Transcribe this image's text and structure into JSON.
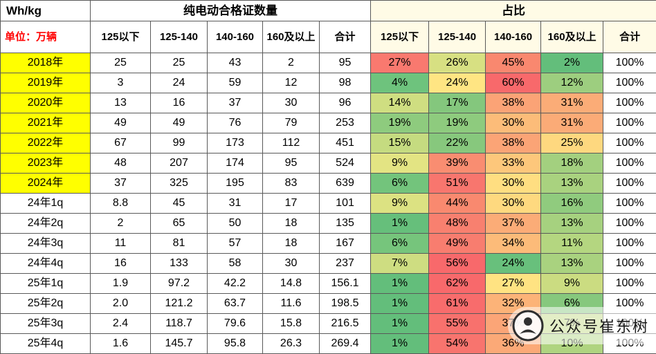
{
  "chart_data": {
    "type": "table",
    "corner": {
      "top": "Wh/kg",
      "sub": "单位：万辆"
    },
    "groups": [
      {
        "label": "纯电动合格证数量",
        "columns": [
          "125以下",
          "125-140",
          "140-160",
          "160及以上",
          "合计"
        ]
      },
      {
        "label": "占比",
        "columns": [
          "125以下",
          "125-140",
          "140-160",
          "160及以上",
          "合计"
        ]
      }
    ],
    "rows": [
      {
        "label": "2018年",
        "year": true,
        "counts": [
          "25",
          "25",
          "43",
          "2",
          "95"
        ],
        "pcts": [
          "27%",
          "26%",
          "45%",
          "2%",
          "100%"
        ],
        "pct_colors": [
          "#F9796F",
          "#D7E082",
          "#F9886F",
          "#63BE7B",
          "#FFFFFF"
        ]
      },
      {
        "label": "2019年",
        "year": true,
        "counts": [
          "3",
          "24",
          "59",
          "12",
          "98"
        ],
        "pcts": [
          "4%",
          "24%",
          "60%",
          "12%",
          "100%"
        ],
        "pct_colors": [
          "#6EC37D",
          "#FFE583",
          "#F8696B",
          "#9DCE7F",
          "#FFFFFF"
        ]
      },
      {
        "label": "2020年",
        "year": true,
        "counts": [
          "13",
          "16",
          "37",
          "30",
          "96"
        ],
        "pcts": [
          "14%",
          "17%",
          "38%",
          "31%",
          "100%"
        ],
        "pct_colors": [
          "#CFDE81",
          "#84C77D",
          "#FBA376",
          "#FBAC77",
          "#FFFFFF"
        ]
      },
      {
        "label": "2021年",
        "year": true,
        "counts": [
          "49",
          "49",
          "76",
          "79",
          "253"
        ],
        "pcts": [
          "19%",
          "19%",
          "30%",
          "31%",
          "100%"
        ],
        "pct_colors": [
          "#8ECB7E",
          "#8ECB7E",
          "#FCBC79",
          "#FBAB77",
          "#FFFFFF"
        ]
      },
      {
        "label": "2022年",
        "year": true,
        "counts": [
          "67",
          "99",
          "173",
          "112",
          "451"
        ],
        "pcts": [
          "15%",
          "22%",
          "38%",
          "25%",
          "100%"
        ],
        "pct_colors": [
          "#C5DB80",
          "#87C87D",
          "#FBA476",
          "#FED87F",
          "#FFFFFF"
        ]
      },
      {
        "label": "2023年",
        "year": true,
        "counts": [
          "48",
          "207",
          "174",
          "95",
          "524"
        ],
        "pcts": [
          "9%",
          "39%",
          "33%",
          "18%",
          "100%"
        ],
        "pct_colors": [
          "#E3E483",
          "#F98D71",
          "#FDC77B",
          "#A3D07F",
          "#FFFFFF"
        ]
      },
      {
        "label": "2024年",
        "year": true,
        "counts": [
          "37",
          "325",
          "195",
          "83",
          "639"
        ],
        "pcts": [
          "6%",
          "51%",
          "30%",
          "13%",
          "100%"
        ],
        "pct_colors": [
          "#73C47C",
          "#F8766E",
          "#FFDE81",
          "#A9D27F",
          "#FFFFFF"
        ]
      },
      {
        "label": "24年1q",
        "year": false,
        "counts": [
          "8.8",
          "45",
          "31",
          "17",
          "101"
        ],
        "pcts": [
          "9%",
          "44%",
          "30%",
          "16%",
          "100%"
        ],
        "pct_colors": [
          "#DCE282",
          "#F9896F",
          "#FED97F",
          "#90CB7E",
          "#FFFFFF"
        ]
      },
      {
        "label": "24年2q",
        "year": false,
        "counts": [
          "2",
          "65",
          "50",
          "18",
          "135"
        ],
        "pcts": [
          "1%",
          "48%",
          "37%",
          "13%",
          "100%"
        ],
        "pct_colors": [
          "#66BF7B",
          "#F8806F",
          "#FBAC77",
          "#A6D17F",
          "#FFFFFF"
        ]
      },
      {
        "label": "24年3q",
        "year": false,
        "counts": [
          "11",
          "81",
          "57",
          "18",
          "167"
        ],
        "pcts": [
          "6%",
          "49%",
          "34%",
          "11%",
          "100%"
        ],
        "pct_colors": [
          "#76C57C",
          "#F87D6F",
          "#FCBB79",
          "#B4D680",
          "#FFFFFF"
        ]
      },
      {
        "label": "24年4q",
        "year": false,
        "counts": [
          "16",
          "133",
          "58",
          "30",
          "237"
        ],
        "pcts": [
          "7%",
          "56%",
          "24%",
          "13%",
          "100%"
        ],
        "pct_colors": [
          "#CEDD81",
          "#F8696B",
          "#68C07C",
          "#A9D27F",
          "#FFFFFF"
        ]
      },
      {
        "label": "25年1q",
        "year": false,
        "counts": [
          "1.9",
          "97.2",
          "42.2",
          "14.8",
          "156.1"
        ],
        "pcts": [
          "1%",
          "62%",
          "27%",
          "9%",
          "100%"
        ],
        "pct_colors": [
          "#63BE7B",
          "#F8696B",
          "#FFE382",
          "#CBDC81",
          "#FFFFFF"
        ]
      },
      {
        "label": "25年2q",
        "year": false,
        "counts": [
          "2.0",
          "121.2",
          "63.7",
          "11.6",
          "198.5"
        ],
        "pcts": [
          "1%",
          "61%",
          "32%",
          "6%",
          "100%"
        ],
        "pct_colors": [
          "#63BE7B",
          "#F86C6C",
          "#FCB378",
          "#86C87D",
          "#FFFFFF"
        ]
      },
      {
        "label": "25年3q",
        "year": false,
        "counts": [
          "2.4",
          "118.7",
          "79.6",
          "15.8",
          "216.5"
        ],
        "pcts": [
          "1%",
          "55%",
          "37%",
          "7%",
          "100%"
        ],
        "pct_colors": [
          "#63BE7B",
          "#F8716D",
          "#FBA577",
          "#C2DA80",
          "#FFFFFF"
        ]
      },
      {
        "label": "25年4q",
        "year": false,
        "counts": [
          "1.6",
          "145.7",
          "95.8",
          "26.3",
          "269.4"
        ],
        "pcts": [
          "1%",
          "54%",
          "36%",
          "10%",
          "100%"
        ],
        "pct_colors": [
          "#63BE7B",
          "#F8746E",
          "#FBA977",
          "#AFD480",
          "#FFFFFF"
        ]
      }
    ]
  },
  "watermark": {
    "text": "公众号崔东树"
  },
  "colors": {
    "year_label_bg": "#FFFF00",
    "pct_header_bg": "#FFFBE6",
    "unit_text_color": "#FF0000",
    "grid_line": "#595959",
    "heat_low": "#63BE7B",
    "heat_mid": "#FFEB84",
    "heat_high": "#F8696B"
  }
}
